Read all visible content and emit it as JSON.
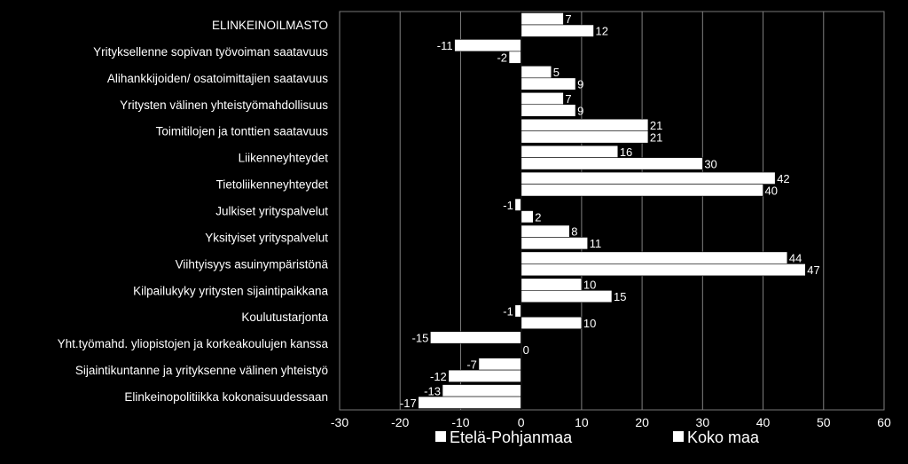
{
  "chart_data": {
    "type": "bar",
    "orientation": "horizontal",
    "title": "",
    "xlabel": "",
    "ylabel": "",
    "xlim": [
      -30,
      60
    ],
    "x_ticks": [
      "-30",
      "-20",
      "-10",
      "0",
      "10",
      "20",
      "30",
      "40",
      "50",
      "60"
    ],
    "grid": true,
    "legend_position": "bottom",
    "categories": [
      "ELINKEINOILMASTO",
      "Yrityksellenne sopivan työvoiman saatavuus",
      "Alihankkijoiden/ osatoimittajien saatavuus",
      "Yritysten välinen yhteistyömahdollisuus",
      "Toimitilojen ja tonttien saatavuus",
      "Liikenneyhteydet",
      "Tietoliikenneyhteydet",
      "Julkiset yrityspalvelut",
      "Yksityiset yrityspalvelut",
      "Viihtyisyys asuinympäristönä",
      "Kilpailukyky yritysten sijaintipaikkana",
      "Koulutustarjonta",
      "Yht.työmahd. yliopistojen ja korkeakoulujen kanssa",
      "Sijaintikuntanne ja yrityksenne välinen yhteistyö",
      "Elinkeinopolitiikka kokonaisuudessaan"
    ],
    "series": [
      {
        "name": "Etelä-Pohjanmaa",
        "color": "#ffffff",
        "values": [
          7,
          -11,
          5,
          7,
          21,
          16,
          42,
          -1,
          8,
          44,
          10,
          -1,
          -15,
          -7,
          -13
        ]
      },
      {
        "name": "Koko maa",
        "color": "#ffffff",
        "values": [
          12,
          -2,
          9,
          9,
          21,
          30,
          40,
          2,
          11,
          47,
          15,
          10,
          0,
          -12,
          -17
        ]
      }
    ]
  }
}
